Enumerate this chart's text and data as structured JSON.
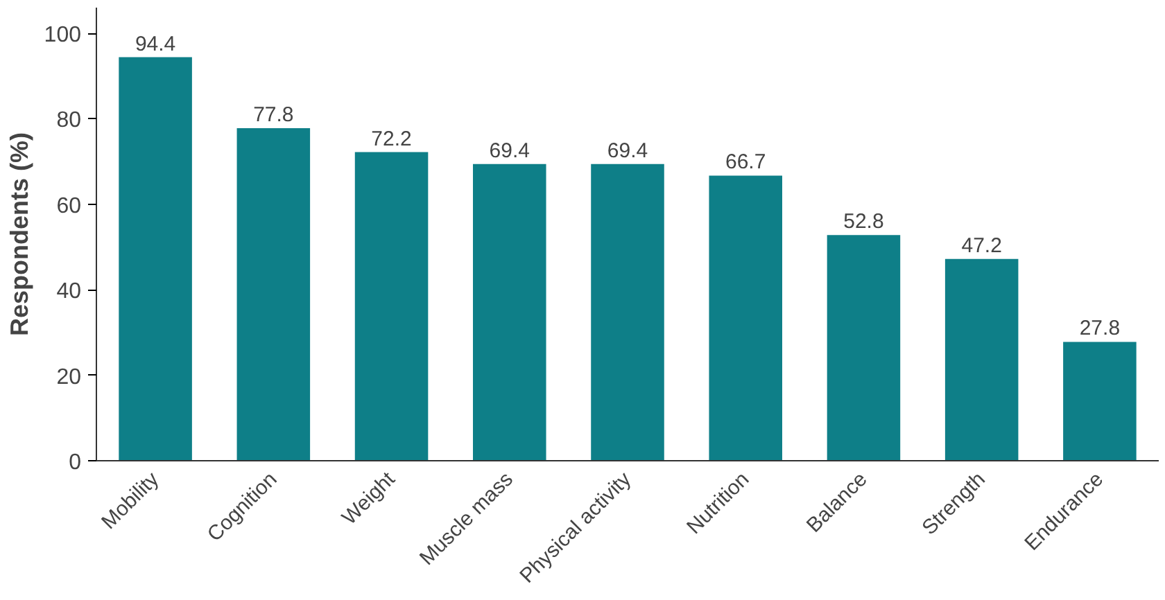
{
  "chart_data": {
    "type": "bar",
    "ylabel": "Respondents (%)",
    "categories": [
      "Mobility",
      "Cognition",
      "Weight",
      "Muscle mass",
      "Physical activity",
      "Nutrition",
      "Balance",
      "Strength",
      "Endurance"
    ],
    "values": [
      94.4,
      77.8,
      72.2,
      69.4,
      69.4,
      66.7,
      52.8,
      47.2,
      27.8
    ],
    "color": "#0e7f88",
    "ylim": [
      0,
      106
    ],
    "yticks": [
      0,
      20,
      40,
      60,
      80,
      100
    ],
    "data_labels": true,
    "grid": false
  }
}
